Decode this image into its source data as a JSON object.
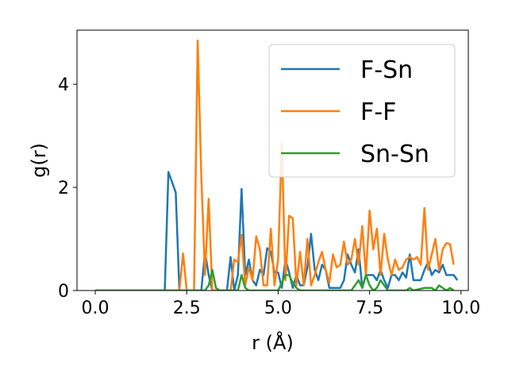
{
  "chart_data": {
    "type": "line",
    "xlabel": "r (Å)",
    "ylabel": "g(r)",
    "xlim": [
      -0.5,
      10.2
    ],
    "ylim": [
      0,
      5.05
    ],
    "xticks": [
      0.0,
      2.5,
      5.0,
      7.5,
      10.0
    ],
    "xtick_labels": [
      "0.0",
      "2.5",
      "5.0",
      "7.5",
      "10.0"
    ],
    "yticks": [
      0,
      2,
      4
    ],
    "ytick_labels": [
      "0",
      "2",
      "4"
    ],
    "legend_position": "upper-right",
    "series": [
      {
        "name": "F-Sn",
        "color": "#1f77b4",
        "points": [
          [
            0.0,
            0
          ],
          [
            1.8,
            0
          ],
          [
            1.9,
            0
          ],
          [
            2.0,
            2.3
          ],
          [
            2.1,
            2.1
          ],
          [
            2.2,
            1.9
          ],
          [
            2.3,
            0
          ],
          [
            2.9,
            0
          ],
          [
            3.0,
            0.75
          ],
          [
            3.1,
            0.3
          ],
          [
            3.2,
            0
          ],
          [
            3.6,
            0
          ],
          [
            3.7,
            0.65
          ],
          [
            3.8,
            0
          ],
          [
            3.9,
            0.3
          ],
          [
            4.0,
            1.97
          ],
          [
            4.1,
            0.3
          ],
          [
            4.2,
            0.6
          ],
          [
            4.3,
            0.2
          ],
          [
            4.4,
            0.1
          ],
          [
            4.5,
            0.4
          ],
          [
            4.6,
            0.3
          ],
          [
            4.7,
            0.82
          ],
          [
            4.8,
            0.75
          ],
          [
            4.9,
            0.35
          ],
          [
            5.0,
            0.35
          ],
          [
            5.1,
            0.05
          ],
          [
            5.2,
            0.6
          ],
          [
            5.3,
            0.35
          ],
          [
            5.4,
            0.05
          ],
          [
            5.5,
            0.3
          ],
          [
            5.6,
            0.1
          ],
          [
            5.7,
            0.1
          ],
          [
            5.8,
            0.45
          ],
          [
            5.9,
            1.1
          ],
          [
            6.0,
            0.4
          ],
          [
            6.1,
            0.2
          ],
          [
            6.2,
            0.5
          ],
          [
            6.3,
            0.4
          ],
          [
            6.4,
            0.05
          ],
          [
            6.5,
            0.05
          ],
          [
            6.6,
            0.05
          ],
          [
            6.7,
            0.05
          ],
          [
            6.8,
            0.2
          ],
          [
            6.9,
            0.7
          ],
          [
            7.0,
            0.5
          ],
          [
            7.1,
            0.35
          ],
          [
            7.2,
            0.8
          ],
          [
            7.3,
            0.05
          ],
          [
            7.4,
            0.3
          ],
          [
            7.5,
            0.3
          ],
          [
            7.6,
            0.3
          ],
          [
            7.7,
            0.2
          ],
          [
            7.8,
            0.4
          ],
          [
            7.9,
            0.2
          ],
          [
            8.0,
            0.05
          ],
          [
            8.1,
            0.3
          ],
          [
            8.2,
            0.3
          ],
          [
            8.3,
            0.2
          ],
          [
            8.4,
            0.35
          ],
          [
            8.5,
            0.25
          ],
          [
            8.6,
            0.7
          ],
          [
            8.7,
            0.2
          ],
          [
            8.8,
            0.2
          ],
          [
            8.9,
            0.2
          ],
          [
            9.0,
            0.4
          ],
          [
            9.1,
            0.55
          ],
          [
            9.2,
            0.3
          ],
          [
            9.3,
            0.4
          ],
          [
            9.4,
            0.35
          ],
          [
            9.5,
            0.5
          ],
          [
            9.6,
            0.3
          ],
          [
            9.7,
            0.3
          ],
          [
            9.8,
            0.3
          ],
          [
            9.9,
            0.2
          ]
        ]
      },
      {
        "name": "F-F",
        "color": "#ff7f0e",
        "points": [
          [
            0.0,
            0
          ],
          [
            2.3,
            0
          ],
          [
            2.4,
            0.72
          ],
          [
            2.5,
            0
          ],
          [
            2.7,
            0
          ],
          [
            2.8,
            4.85
          ],
          [
            2.9,
            2.2
          ],
          [
            3.0,
            0.3
          ],
          [
            3.1,
            1.78
          ],
          [
            3.2,
            0
          ],
          [
            3.7,
            0
          ],
          [
            3.8,
            0.6
          ],
          [
            3.9,
            0.55
          ],
          [
            4.0,
            1.08
          ],
          [
            4.1,
            0.1
          ],
          [
            4.2,
            0.45
          ],
          [
            4.3,
            0.2
          ],
          [
            4.4,
            1.05
          ],
          [
            4.5,
            0.8
          ],
          [
            4.6,
            0.1
          ],
          [
            4.7,
            0.1
          ],
          [
            4.8,
            1.2
          ],
          [
            4.9,
            0.1
          ],
          [
            5.0,
            0.6
          ],
          [
            5.1,
            2.85
          ],
          [
            5.2,
            0.2
          ],
          [
            5.3,
            1.45
          ],
          [
            5.4,
            1.4
          ],
          [
            5.5,
            0.1
          ],
          [
            5.6,
            0.75
          ],
          [
            5.7,
            0.1
          ],
          [
            5.8,
            1.0
          ],
          [
            5.9,
            0.1
          ],
          [
            6.0,
            0.3
          ],
          [
            6.1,
            0.55
          ],
          [
            6.2,
            0.75
          ],
          [
            6.3,
            0.4
          ],
          [
            6.4,
            0.15
          ],
          [
            6.5,
            0.7
          ],
          [
            6.6,
            0.45
          ],
          [
            6.7,
            0.5
          ],
          [
            6.8,
            0.95
          ],
          [
            6.9,
            0.5
          ],
          [
            7.0,
            0.6
          ],
          [
            7.1,
            1.0
          ],
          [
            7.2,
            0.5
          ],
          [
            7.3,
            1.25
          ],
          [
            7.4,
            0.3
          ],
          [
            7.5,
            1.55
          ],
          [
            7.6,
            0.8
          ],
          [
            7.7,
            1.2
          ],
          [
            7.8,
            0.3
          ],
          [
            7.9,
            1.1
          ],
          [
            8.0,
            0.6
          ],
          [
            8.1,
            0.3
          ],
          [
            8.2,
            0.6
          ],
          [
            8.3,
            0.4
          ],
          [
            8.4,
            0.45
          ],
          [
            8.5,
            0.6
          ],
          [
            8.6,
            0.65
          ],
          [
            8.7,
            0.6
          ],
          [
            8.8,
            0.65
          ],
          [
            8.9,
            0.5
          ],
          [
            9.0,
            1.6
          ],
          [
            9.1,
            0.4
          ],
          [
            9.2,
            0.7
          ],
          [
            9.3,
            1.0
          ],
          [
            9.4,
            0.4
          ],
          [
            9.5,
            0.8
          ],
          [
            9.6,
            0.92
          ],
          [
            9.7,
            0.9
          ],
          [
            9.8,
            0.5
          ]
        ]
      },
      {
        "name": "Sn-Sn",
        "color": "#2ca02c",
        "points": [
          [
            0.0,
            0
          ],
          [
            3.0,
            0
          ],
          [
            3.1,
            0.1
          ],
          [
            3.2,
            0.4
          ],
          [
            3.3,
            0.05
          ],
          [
            3.4,
            0
          ],
          [
            3.9,
            0
          ],
          [
            4.0,
            0.3
          ],
          [
            4.1,
            0.05
          ],
          [
            4.2,
            0
          ],
          [
            5.0,
            0
          ],
          [
            5.1,
            0.15
          ],
          [
            5.2,
            0.3
          ],
          [
            5.3,
            0.3
          ],
          [
            5.4,
            0.15
          ],
          [
            5.5,
            0.05
          ],
          [
            5.6,
            0
          ],
          [
            7.0,
            0
          ],
          [
            7.1,
            0.1
          ],
          [
            7.2,
            0.2
          ],
          [
            7.3,
            0.05
          ],
          [
            7.4,
            0.3
          ],
          [
            7.5,
            0.1
          ],
          [
            7.6,
            0.0
          ],
          [
            7.7,
            0.05
          ],
          [
            7.8,
            0.2
          ],
          [
            7.9,
            0.1
          ],
          [
            8.0,
            0.0
          ],
          [
            8.5,
            0.0
          ],
          [
            8.6,
            0.05
          ],
          [
            8.7,
            0.0
          ],
          [
            9.0,
            0.05
          ],
          [
            9.1,
            0.05
          ],
          [
            9.2,
            0.05
          ],
          [
            9.3,
            0.0
          ],
          [
            9.4,
            0.1
          ],
          [
            9.5,
            0.05
          ],
          [
            9.6,
            0.0
          ],
          [
            9.7,
            0.05
          ],
          [
            9.8,
            0.0
          ]
        ]
      }
    ]
  }
}
